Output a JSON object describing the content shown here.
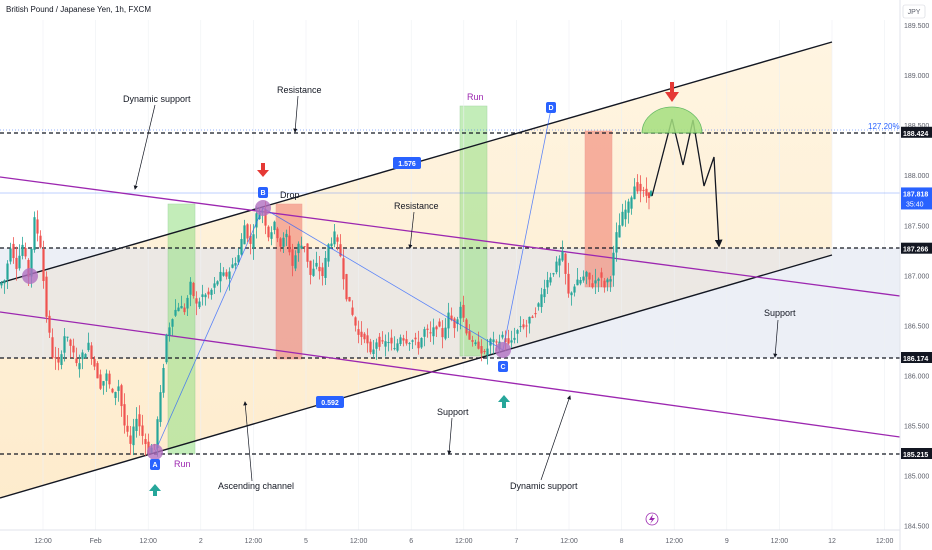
{
  "header": {
    "title": "British Pound / Japanese Yen, 1h, FXCM",
    "currency": "JPY"
  },
  "colors": {
    "up": "#26a69a",
    "down": "#ef5350",
    "channel": "#131722",
    "dynamic": "#9c27b0",
    "label_box": "#2962ff",
    "fib": "#2962ff"
  },
  "chart_data": {
    "type": "candlestick",
    "symbol": "GBPJPY",
    "timeframe": "1h",
    "ylim": [
      184.5,
      189.5
    ],
    "y_ticks": [
      184.5,
      185.0,
      185.5,
      186.0,
      186.5,
      187.0,
      187.5,
      188.0,
      188.5,
      189.0,
      189.5
    ],
    "x_ticks": [
      "12:00",
      "Feb",
      "12:00",
      "2",
      "12:00",
      "5",
      "12:00",
      "6",
      "12:00",
      "7",
      "12:00",
      "8",
      "12:00",
      "9",
      "12:00",
      "12",
      "12:00"
    ],
    "price_labels": [
      {
        "value": 188.424,
        "text": "188.424",
        "style": "level"
      },
      {
        "value": 187.818,
        "text": "187.818",
        "sub": "35:40",
        "style": "current"
      },
      {
        "value": 187.266,
        "text": "187.266",
        "style": "level"
      },
      {
        "value": 186.174,
        "text": "186.174",
        "style": "level"
      },
      {
        "value": 185.215,
        "text": "185.215",
        "style": "level"
      }
    ],
    "fib_label": "127.20%",
    "box_labels": [
      "1.576",
      "0.592"
    ],
    "points": [
      "A",
      "B",
      "C",
      "D"
    ],
    "annotations": [
      "Dynamic support",
      "Resistance",
      "Run",
      "Drop",
      "Resistance",
      "Support",
      "Run",
      "Ascending channel",
      "Support",
      "Dynamic support"
    ],
    "close_path": [
      [
        0,
        186.9
      ],
      [
        6,
        186.95
      ],
      [
        12,
        187.3
      ],
      [
        18,
        187.1
      ],
      [
        24,
        187.3
      ],
      [
        30,
        187.0
      ],
      [
        36,
        187.55
      ],
      [
        42,
        187.3
      ],
      [
        48,
        186.6
      ],
      [
        54,
        186.2
      ],
      [
        60,
        186.1
      ],
      [
        66,
        186.4
      ],
      [
        72,
        186.3
      ],
      [
        78,
        186.1
      ],
      [
        84,
        186.2
      ],
      [
        90,
        186.3
      ],
      [
        96,
        186.1
      ],
      [
        102,
        185.9
      ],
      [
        108,
        186.0
      ],
      [
        114,
        185.8
      ],
      [
        120,
        185.9
      ],
      [
        126,
        185.5
      ],
      [
        132,
        185.3
      ],
      [
        138,
        185.6
      ],
      [
        144,
        185.4
      ],
      [
        150,
        185.25
      ],
      [
        156,
        185.3
      ],
      [
        162,
        185.8
      ],
      [
        168,
        186.4
      ],
      [
        174,
        186.6
      ],
      [
        180,
        186.7
      ],
      [
        186,
        186.65
      ],
      [
        192,
        186.9
      ],
      [
        198,
        186.7
      ],
      [
        204,
        186.8
      ],
      [
        210,
        186.8
      ],
      [
        216,
        186.9
      ],
      [
        222,
        187.0
      ],
      [
        228,
        187.0
      ],
      [
        234,
        187.1
      ],
      [
        240,
        187.2
      ],
      [
        246,
        187.5
      ],
      [
        252,
        187.3
      ],
      [
        258,
        187.6
      ],
      [
        264,
        187.65
      ],
      [
        270,
        187.4
      ],
      [
        276,
        187.5
      ],
      [
        282,
        187.3
      ],
      [
        288,
        187.4
      ],
      [
        294,
        187.1
      ],
      [
        300,
        187.3
      ],
      [
        306,
        187.3
      ],
      [
        312,
        187.0
      ],
      [
        318,
        187.1
      ],
      [
        324,
        187.0
      ],
      [
        330,
        187.3
      ],
      [
        336,
        187.4
      ],
      [
        342,
        187.2
      ],
      [
        348,
        186.8
      ],
      [
        354,
        186.6
      ],
      [
        360,
        186.4
      ],
      [
        366,
        186.4
      ],
      [
        372,
        186.2
      ],
      [
        378,
        186.35
      ],
      [
        384,
        186.3
      ],
      [
        390,
        186.35
      ],
      [
        396,
        186.25
      ],
      [
        402,
        186.4
      ],
      [
        408,
        186.35
      ],
      [
        414,
        186.35
      ],
      [
        420,
        186.3
      ],
      [
        426,
        186.45
      ],
      [
        432,
        186.4
      ],
      [
        438,
        186.5
      ],
      [
        444,
        186.4
      ],
      [
        450,
        186.6
      ],
      [
        456,
        186.5
      ],
      [
        462,
        186.7
      ],
      [
        468,
        186.45
      ],
      [
        474,
        186.3
      ],
      [
        480,
        186.3
      ],
      [
        486,
        186.2
      ],
      [
        492,
        186.35
      ],
      [
        498,
        186.3
      ],
      [
        504,
        186.4
      ],
      [
        510,
        186.3
      ],
      [
        516,
        186.4
      ],
      [
        522,
        186.5
      ],
      [
        528,
        186.5
      ],
      [
        534,
        186.6
      ],
      [
        540,
        186.7
      ],
      [
        546,
        186.9
      ],
      [
        552,
        187.0
      ],
      [
        558,
        187.1
      ],
      [
        564,
        187.2
      ],
      [
        570,
        186.8
      ],
      [
        576,
        186.9
      ],
      [
        582,
        186.95
      ],
      [
        588,
        187.0
      ],
      [
        594,
        186.9
      ],
      [
        600,
        187.0
      ],
      [
        606,
        186.9
      ],
      [
        612,
        187.0
      ],
      [
        618,
        187.4
      ],
      [
        624,
        187.6
      ],
      [
        630,
        187.7
      ],
      [
        636,
        187.9
      ],
      [
        642,
        187.85
      ],
      [
        648,
        187.8
      ],
      [
        652,
        187.82
      ]
    ]
  }
}
